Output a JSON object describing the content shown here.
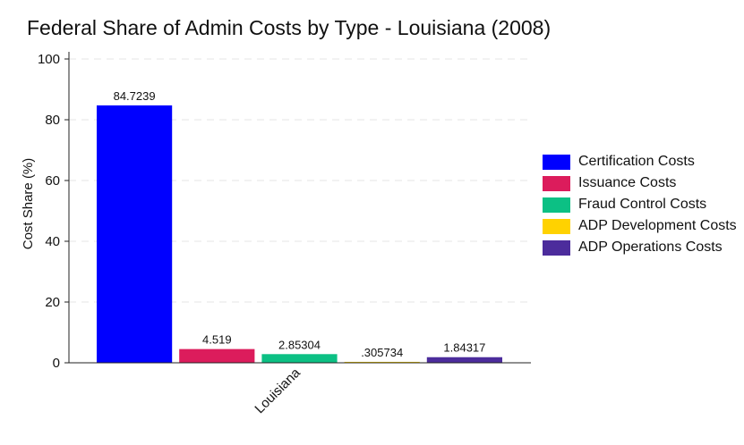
{
  "chart_data": {
    "type": "bar",
    "title": "Federal Share of Admin Costs by Type - Louisiana (2008)",
    "ylabel": "Cost Share (%)",
    "xlabel": "",
    "categories": [
      "Louisiana"
    ],
    "ylim": [
      0,
      100
    ],
    "yticks": [
      0,
      20,
      40,
      60,
      80,
      100
    ],
    "grid": true,
    "legend_position": "right",
    "series": [
      {
        "name": "Certification Costs",
        "values": [
          84.7239
        ],
        "label": "84.7239",
        "color": "#0000ff"
      },
      {
        "name": "Issuance Costs",
        "values": [
          4.519
        ],
        "label": "4.519",
        "color": "#dc1c5c"
      },
      {
        "name": "Fraud Control Costs",
        "values": [
          2.85304
        ],
        "label": "2.85304",
        "color": "#0cc084"
      },
      {
        "name": "ADP Development Costs",
        "values": [
          0.305734
        ],
        "label": ".305734",
        "color": "#ffd200"
      },
      {
        "name": "ADP Operations Costs",
        "values": [
          1.84317
        ],
        "label": "1.84317",
        "color": "#4c2c9c"
      }
    ]
  }
}
